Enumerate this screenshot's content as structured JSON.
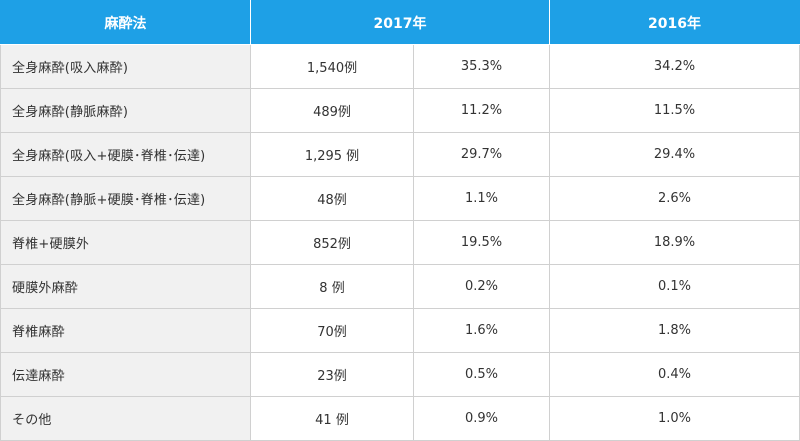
{
  "table": {
    "headers": {
      "method": "麻酔法",
      "year_2017": "2017年",
      "year_2016": "2016年"
    },
    "rows": [
      {
        "method": "全身麻酔(吸入麻酔)",
        "count_2017": "1,540例",
        "pct_2017": "35.3%",
        "pct_2016": "34.2%"
      },
      {
        "method": "全身麻酔(静脈麻酔)",
        "count_2017": "489例",
        "pct_2017": "11.2%",
        "pct_2016": "11.5%"
      },
      {
        "method": "全身麻酔(吸入+硬膜･脊椎･伝達)",
        "count_2017": "1,295 例",
        "pct_2017": "29.7%",
        "pct_2016": "29.4%"
      },
      {
        "method": "全身麻酔(静脈+硬膜･脊椎･伝達)",
        "count_2017": "48例",
        "pct_2017": "1.1%",
        "pct_2016": "2.6%"
      },
      {
        "method": "脊椎+硬膜外",
        "count_2017": "852例",
        "pct_2017": "19.5%",
        "pct_2016": "18.9%"
      },
      {
        "method": "硬膜外麻酔",
        "count_2017": "8 例",
        "pct_2017": "0.2%",
        "pct_2016": "0.1%"
      },
      {
        "method": "脊椎麻酔",
        "count_2017": "70例",
        "pct_2017": "1.6%",
        "pct_2016": "1.8%"
      },
      {
        "method": "伝達麻酔",
        "count_2017": "23例",
        "pct_2017": "0.5%",
        "pct_2016": "0.4%"
      },
      {
        "method": "その他",
        "count_2017": "41 例",
        "pct_2017": "0.9%",
        "pct_2016": "1.0%"
      }
    ]
  },
  "colors": {
    "header_background": "#1ea0e6",
    "header_text": "#ffffff",
    "label_cell_background": "#f1f1f1",
    "border": "#d0d0d0"
  }
}
